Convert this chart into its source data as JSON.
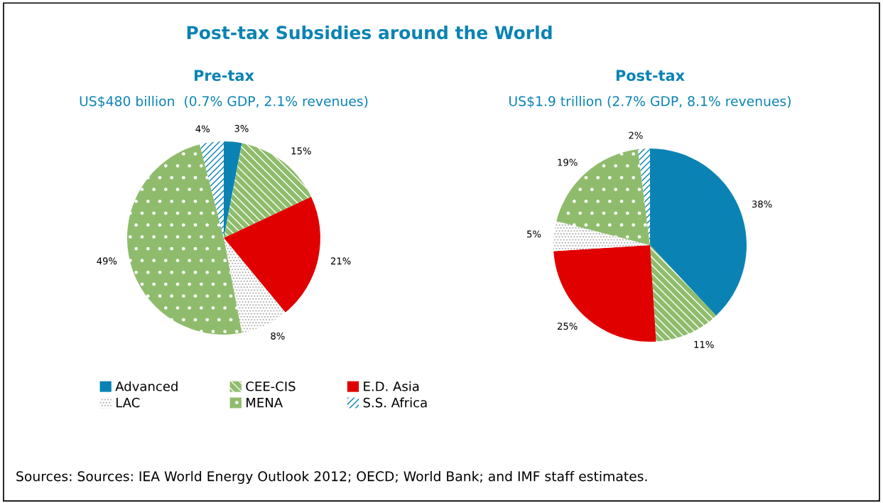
{
  "chart_data": [
    {
      "type": "pie",
      "title": "Pre-tax",
      "subtitle": "US$480 billion  (0.7% GDP, 2.1% revenues)",
      "categories": [
        "Advanced",
        "CEE-CIS",
        "E.D. Asia",
        "LAC",
        "MENA",
        "S.S. Africa"
      ],
      "values": [
        3,
        15,
        21,
        8,
        49,
        4
      ],
      "value_labels": [
        "3%",
        "15%",
        "21%",
        "8%",
        "49%",
        "4%"
      ],
      "colors": [
        "#0a83b4",
        "#8fbc6c",
        "#e00000",
        "#b0b0b0",
        "#8fbc6c",
        "#0a83b4"
      ],
      "legend": "bottom",
      "annotations": [
        "Post-tax Subsidies around the World",
        "Sources: Sources: IEA World Energy Outlook 2012; OECD; World Bank; and IMF staff estimates."
      ]
    },
    {
      "type": "pie",
      "title": "Post-tax",
      "subtitle": "US$1.9 trillion (2.7% GDP, 8.1% revenues)",
      "categories": [
        null,
        null,
        null,
        null,
        null,
        null
      ],
      "values": [
        38,
        11,
        25,
        5,
        19,
        2
      ],
      "value_labels": [
        "38%",
        "11%",
        "25%",
        "5%",
        "19%",
        "2%"
      ],
      "colors": [
        "#0a83b4",
        "#8fbc6c",
        "#e00000",
        "#b0b0b0",
        "#8fbc6c",
        "#0a83b4"
      ]
    }
  ]
}
